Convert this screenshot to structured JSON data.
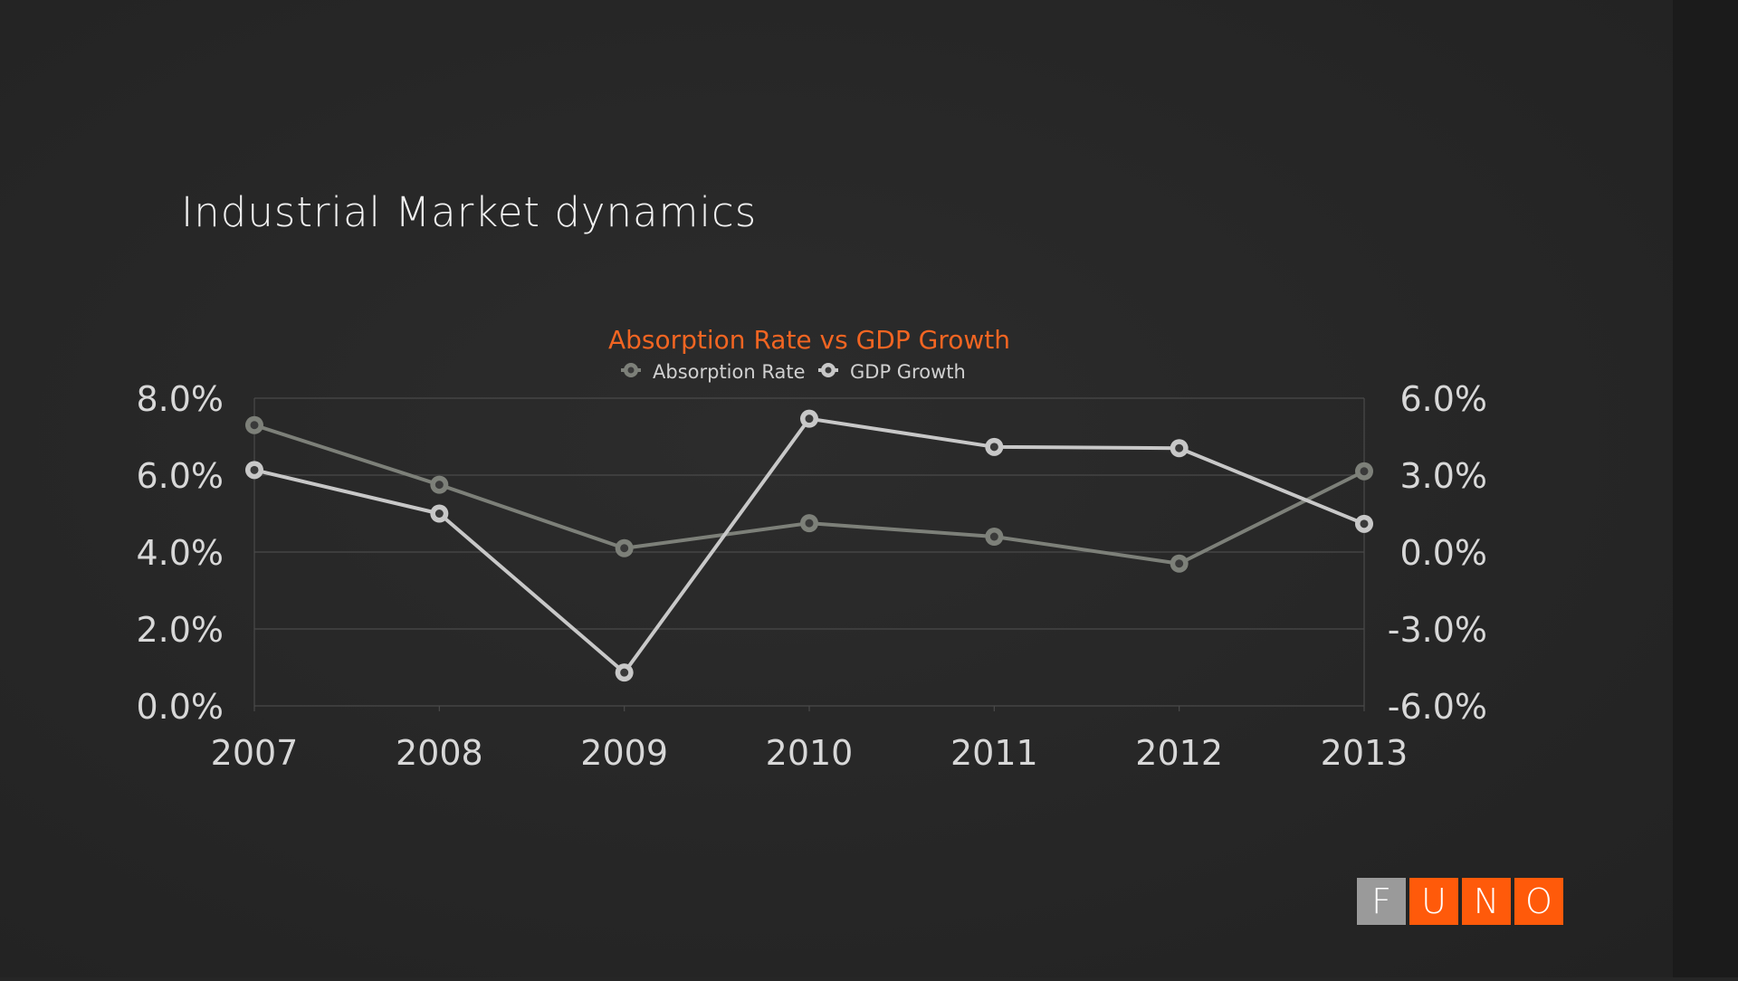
{
  "slide": {
    "title": "Industrial Market dynamics"
  },
  "logo": {
    "letters": [
      "F",
      "U",
      "N",
      "O"
    ],
    "colors": [
      "#9a9a9a",
      "#ff5a0a",
      "#ff5a0a",
      "#ff5a0a"
    ]
  },
  "colors": {
    "accent": "#f26522",
    "absorption": "#7d8079",
    "gdp": "#c8c8c8",
    "grid": "#4a4a4a",
    "tick_text": "#d8d8d8"
  },
  "chart_data": {
    "type": "line",
    "title": "Absorption Rate vs GDP Growth",
    "categories": [
      "2007",
      "2008",
      "2009",
      "2010",
      "2011",
      "2012",
      "2013"
    ],
    "series": [
      {
        "name": "Absorption Rate",
        "axis": "left",
        "values": [
          7.3,
          5.75,
          4.1,
          4.75,
          4.4,
          3.7,
          6.1
        ]
      },
      {
        "name": "GDP Growth",
        "axis": "right",
        "values": [
          3.2,
          1.5,
          -4.7,
          5.2,
          4.1,
          4.05,
          1.1
        ]
      }
    ],
    "left_axis": {
      "min": 0,
      "max": 8,
      "ticks": [
        "0.0%",
        "2.0%",
        "4.0%",
        "6.0%",
        "8.0%"
      ]
    },
    "right_axis": {
      "min": -6,
      "max": 6,
      "ticks": [
        "-6.0%",
        "-3.0%",
        "0.0%",
        "3.0%",
        "6.0%"
      ]
    },
    "legend_position": "top-center",
    "grid": true
  }
}
